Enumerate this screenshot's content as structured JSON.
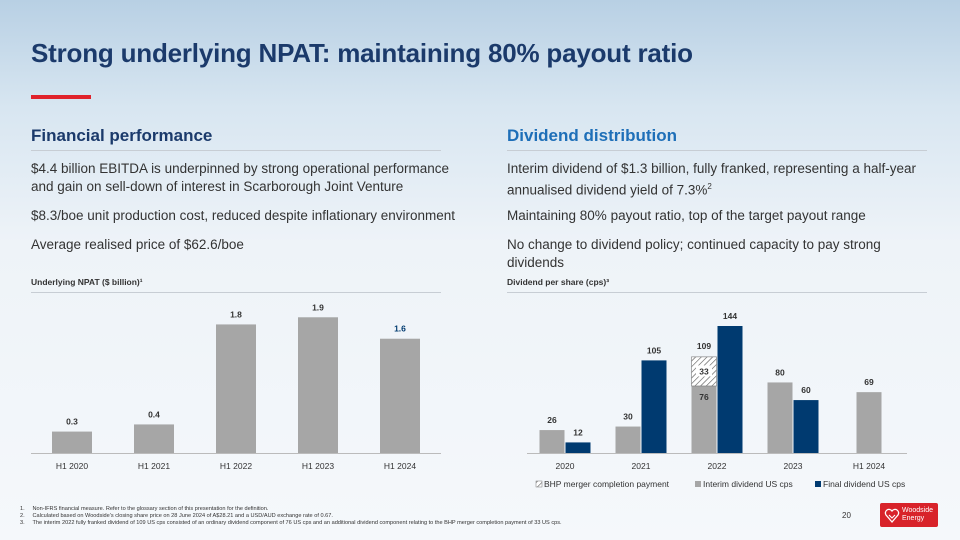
{
  "title": "Strong underlying NPAT: maintaining 80% payout ratio",
  "left": {
    "heading": "Financial performance",
    "points": [
      "$4.4 billion EBITDA is underpinned by strong operational performance and gain on sell-down of interest in Scarborough Joint Venture",
      "$8.3/boe unit production cost, reduced despite inflationary environment",
      "Average realised price of $62.6/boe"
    ],
    "chart_title": "Underlying NPAT ($ billion)¹"
  },
  "right": {
    "heading": "Dividend distribution",
    "point1_text": "Interim dividend of $1.3 billion, fully franked, representing a half-year annualised dividend yield of 7.3%",
    "point1_sup": "2",
    "points_more": [
      "Maintaining 80% payout ratio, top of the target payout range",
      "No change to dividend policy; continued capacity to pay strong dividends"
    ],
    "chart_title": "Dividend per share (cps)³"
  },
  "colors": {
    "grey": "#a6a6a6",
    "navy": "#003a70",
    "title": "#1b3a6b",
    "accent": "#e0222b",
    "blue": "#1e6fb8"
  },
  "chart_data": [
    {
      "type": "bar",
      "title": "Underlying NPAT ($ billion)¹",
      "categories": [
        "H1 2020",
        "H1 2021",
        "H1 2022",
        "H1 2023",
        "H1 2024"
      ],
      "values": [
        0.3,
        0.4,
        1.8,
        1.9,
        1.6
      ],
      "labels": [
        "0.3",
        "0.4",
        "1.8",
        "1.9",
        "1.6"
      ],
      "ylim": [
        0,
        2.1
      ]
    },
    {
      "type": "bar",
      "title": "Dividend per share (cps)³",
      "categories": [
        "2020",
        "2021",
        "2022",
        "2023",
        "H1 2024"
      ],
      "series": [
        {
          "name": "BHP merger completion payment",
          "values": [
            0,
            0,
            33,
            0,
            0
          ]
        },
        {
          "name": "Interim dividend US cps",
          "values": [
            26,
            30,
            76,
            80,
            69
          ]
        },
        {
          "name": "Final dividend US cps",
          "values": [
            12,
            105,
            144,
            60,
            null
          ]
        }
      ],
      "stack_totals": {
        "2022": 109
      },
      "ylim": [
        0,
        160
      ]
    }
  ],
  "footnotes": [
    {
      "num": "1.",
      "text": "Non-IFRS financial measure. Refer to the glossary section of this presentation for the definition."
    },
    {
      "num": "2.",
      "text": "Calculated based on Woodside's closing share price on 28 June 2024 of A$28.21 and a USD/AUD exchange rate of 0.67."
    },
    {
      "num": "3.",
      "text": "The interim 2022 fully franked dividend of 109 US cps consisted of an ordinary dividend component of 76 US cps and an additional dividend component relating to the BHP merger completion payment of 33 US cps."
    }
  ],
  "page_number": "20",
  "logo": {
    "line1": "Woodside",
    "line2": "Energy"
  }
}
